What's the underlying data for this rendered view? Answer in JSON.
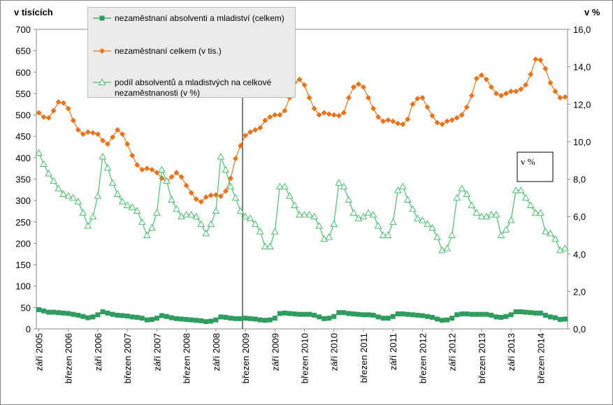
{
  "chart_data": {
    "type": "line",
    "y_label": "v tisících",
    "y2_label": "v %",
    "annotation": "v %",
    "categories": [
      "září 2005",
      null,
      null,
      null,
      null,
      null,
      "březen 2006",
      null,
      null,
      null,
      null,
      null,
      "září 2006",
      null,
      null,
      null,
      null,
      null,
      "březen 2007",
      null,
      null,
      null,
      null,
      null,
      "září 2007",
      null,
      null,
      null,
      null,
      null,
      "březen 2008",
      null,
      null,
      null,
      null,
      null,
      "září 2008",
      null,
      null,
      null,
      null,
      null,
      "březen 2009",
      null,
      null,
      null,
      null,
      null,
      "září 2009",
      null,
      null,
      null,
      null,
      null,
      "březen 2010",
      null,
      null,
      null,
      null,
      null,
      "září 2010",
      null,
      null,
      null,
      null,
      null,
      "březen 2011",
      null,
      null,
      null,
      null,
      null,
      "září 2011",
      null,
      null,
      null,
      null,
      null,
      "březen 2012",
      null,
      null,
      null,
      null,
      null,
      "září 2012",
      null,
      null,
      null,
      null,
      null,
      "březen 2013",
      null,
      null,
      null,
      null,
      null,
      "září 2013",
      null,
      null,
      null,
      null,
      null,
      "březen 2014",
      null,
      null,
      null,
      null,
      null
    ],
    "series": [
      {
        "name": "nezaměstnaní absolventi a mladiství (celkem)",
        "color": "#2e9b5f",
        "marker": "square",
        "values": [
          45,
          42,
          39,
          39,
          38,
          37,
          36,
          34,
          32,
          29,
          26,
          28,
          33,
          40,
          37,
          34,
          32,
          31,
          30,
          28,
          27,
          25,
          21,
          22,
          25,
          31,
          29,
          26,
          24,
          23,
          22,
          21,
          20,
          19,
          17,
          18,
          21,
          28,
          27,
          25,
          24,
          24,
          25,
          24,
          23,
          21,
          20,
          21,
          25,
          36,
          37,
          36,
          35,
          34,
          34,
          34,
          32,
          28,
          24,
          25,
          29,
          38,
          38,
          36,
          35,
          34,
          33,
          33,
          32,
          28,
          25,
          25,
          29,
          35,
          35,
          34,
          33,
          32,
          31,
          29,
          27,
          23,
          20,
          21,
          25,
          33,
          35,
          35,
          34,
          34,
          34,
          34,
          32,
          28,
          27,
          29,
          33,
          40,
          40,
          39,
          38,
          37,
          37,
          32,
          28,
          26,
          22,
          23
        ]
      },
      {
        "name": "nezaměstnaní celkem (v tis.)",
        "color": "#e8731a",
        "marker": "diamond",
        "values": [
          505,
          495,
          493,
          510,
          530,
          528,
          515,
          487,
          465,
          455,
          460,
          458,
          455,
          440,
          432,
          448,
          465,
          455,
          432,
          405,
          383,
          372,
          375,
          372,
          365,
          352,
          345,
          355,
          365,
          355,
          335,
          318,
          303,
          297,
          308,
          312,
          313,
          310,
          322,
          352,
          398,
          428,
          452,
          460,
          465,
          470,
          487,
          495,
          500,
          500,
          510,
          540,
          575,
          583,
          570,
          540,
          515,
          500,
          505,
          502,
          500,
          498,
          505,
          540,
          565,
          572,
          565,
          540,
          515,
          495,
          485,
          488,
          485,
          480,
          478,
          490,
          525,
          538,
          540,
          518,
          498,
          482,
          478,
          485,
          488,
          493,
          500,
          518,
          545,
          585,
          593,
          583,
          565,
          550,
          545,
          550,
          555,
          555,
          560,
          570,
          595,
          630,
          628,
          608,
          575,
          555,
          540,
          542
        ]
      },
      {
        "name": "podíl absolventů a mladistvých na celkové nezaměstnanosti (v %)",
        "color": "#4cbf6e",
        "marker": "triangle",
        "axis": "y2",
        "values": [
          9.4,
          8.8,
          8.3,
          7.9,
          7.5,
          7.2,
          7.1,
          7.0,
          6.8,
          6.2,
          5.5,
          6.0,
          7.1,
          9.2,
          8.6,
          7.8,
          7.2,
          6.8,
          6.6,
          6.5,
          6.3,
          5.7,
          5.0,
          5.4,
          6.2,
          8.5,
          7.9,
          6.9,
          6.4,
          6.0,
          6.1,
          6.1,
          6.0,
          5.6,
          5.1,
          5.6,
          6.3,
          9.2,
          8.5,
          7.6,
          7.0,
          6.3,
          6.0,
          5.9,
          5.6,
          5.2,
          4.4,
          4.4,
          5.2,
          7.6,
          7.6,
          7.1,
          6.6,
          6.1,
          6.1,
          6.1,
          6.0,
          5.5,
          4.8,
          4.9,
          5.6,
          7.8,
          7.6,
          6.9,
          6.2,
          5.9,
          6.0,
          6.2,
          6.1,
          5.5,
          5.0,
          5.0,
          5.7,
          7.4,
          7.6,
          6.9,
          6.4,
          5.9,
          5.8,
          5.6,
          5.4,
          4.9,
          4.2,
          4.3,
          5.0,
          7.0,
          7.5,
          7.2,
          6.6,
          6.2,
          6.0,
          6.0,
          6.1,
          6.1,
          5.0,
          5.3,
          5.8,
          7.4,
          7.4,
          7.0,
          6.6,
          6.2,
          6.2,
          5.2,
          5.1,
          4.8,
          4.2,
          4.3
        ]
      }
    ],
    "ylim": [
      0,
      700
    ],
    "yticks": [
      0,
      50,
      100,
      150,
      200,
      250,
      300,
      350,
      400,
      450,
      500,
      550,
      600,
      650,
      700
    ],
    "y2lim": [
      0,
      16
    ],
    "y2ticks": [
      {
        "value": 0,
        "label": "0,0"
      },
      {
        "value": 2,
        "label": "2,0"
      },
      {
        "value": 4,
        "label": "4,0"
      },
      {
        "value": 6,
        "label": "6,0"
      },
      {
        "value": 8,
        "label": "8,0"
      },
      {
        "value": 10,
        "label": "10,0"
      },
      {
        "value": 12,
        "label": "12,0"
      },
      {
        "value": 14,
        "label": "14,0"
      },
      {
        "value": 16,
        "label": "16,0"
      }
    ]
  }
}
